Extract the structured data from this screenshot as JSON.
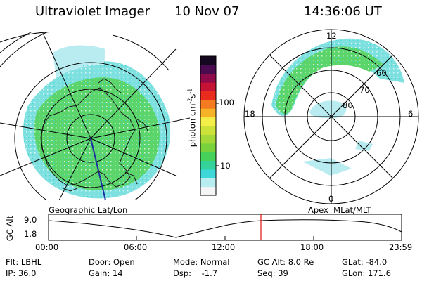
{
  "header": {
    "instrument": "Ultraviolet Imager",
    "date": "10 Nov 07",
    "time": "14:36:06 UT"
  },
  "colorbar": {
    "unit_label": "photon cm",
    "unit_exp1": "-2",
    "unit_s": "s",
    "unit_exp2": "-1",
    "ticks": [
      "100",
      "10"
    ],
    "colors": [
      "#f5f5f5",
      "#b8ecf0",
      "#3fd8d8",
      "#33d29b",
      "#46d25a",
      "#79d23c",
      "#a5d93a",
      "#cde33a",
      "#f4ee49",
      "#f7b327",
      "#f47b21",
      "#e92c1e",
      "#c51235",
      "#8f0a4b",
      "#4a0b50",
      "#140820"
    ]
  },
  "geo_map": {
    "label": "Geographic Lat/Lon",
    "emission_color": "#5bd46a",
    "edge_color": "#7fe0e0"
  },
  "apex_map": {
    "label": "Apex  MLat/MLT",
    "mlt_labels": {
      "top": "12",
      "left": "18",
      "right": "6",
      "bottom": "0"
    },
    "lat_labels": [
      "60",
      "70",
      "80"
    ]
  },
  "altitude_plot": {
    "ylabel": "GC Alt",
    "yticks": [
      "9.0",
      "1.8"
    ],
    "xticks": [
      "00:00",
      "06:00",
      "12:00",
      "18:00",
      "23:59"
    ],
    "cursor_color": "#e01010"
  },
  "footer": {
    "flt": "Flt: LBHL",
    "ip": "IP: 36.0",
    "door": "Door: Open",
    "gain": "Gain: 14",
    "mode": "Mode: Normal",
    "dsp": "Dsp:    -1.7",
    "gcalt": "GC Alt: 8.0 Re",
    "seq": "Seq: 39",
    "glat": "GLat: -84.0",
    "glon": "GLon: 171.6"
  }
}
